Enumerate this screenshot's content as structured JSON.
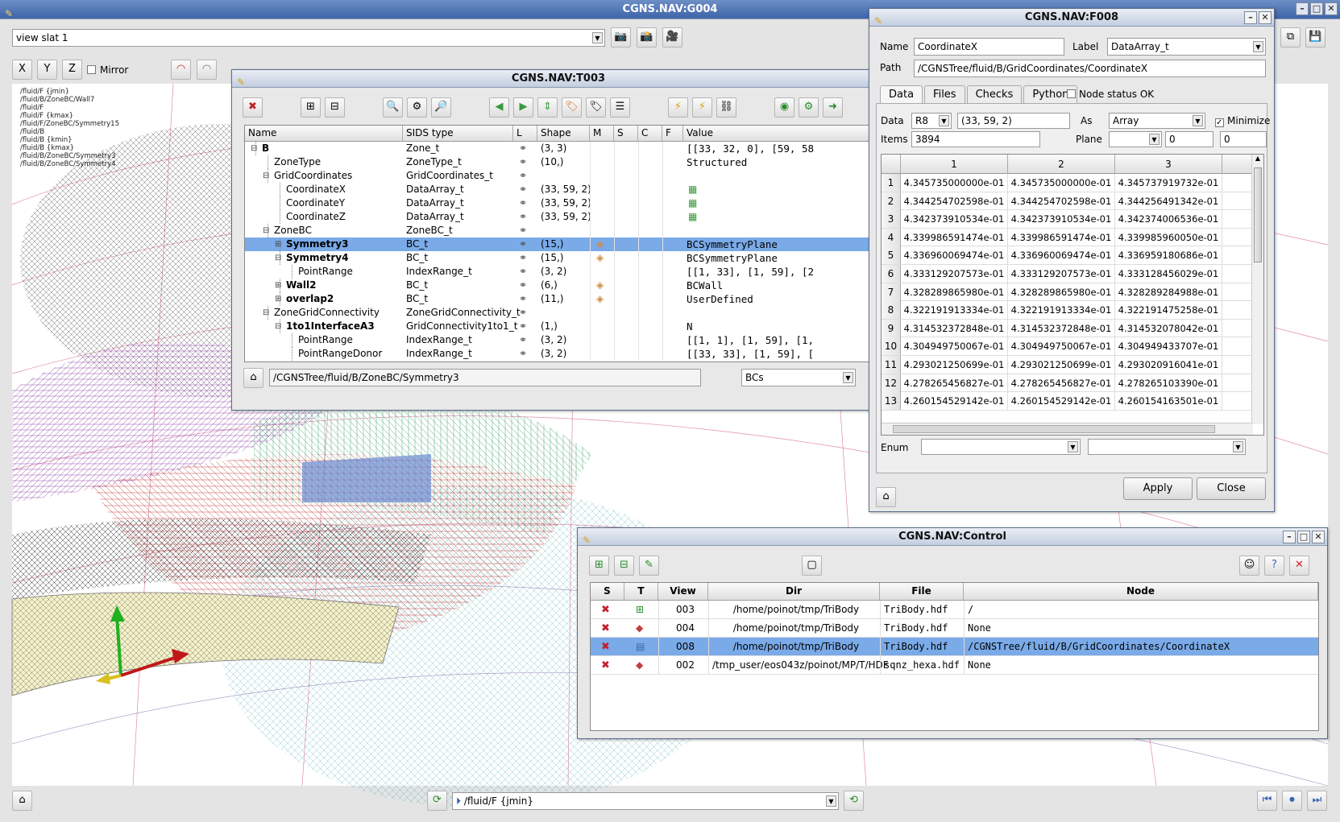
{
  "main": {
    "title": "CGNS.NAV:G004",
    "view_combo": "view slat 1",
    "axis": [
      "X",
      "Y",
      "Z"
    ],
    "mirror_label": "Mirror",
    "overlay_lines": [
      "/fluid/F {jmin}",
      "/fluid/B/ZoneBC/Wall7",
      "/fluid/F",
      "/fluid/F {kmax}",
      "/fluid/F/ZoneBC/Symmetry15",
      "/fluid/B",
      "/fluid/B {kmin}",
      "/fluid/B {kmax}",
      "/fluid/B/ZoneBC/Symmetry3",
      "/fluid/B/ZoneBC/Symmetry4"
    ],
    "bottom_combo": "/fluid/F {jmin}"
  },
  "tree": {
    "title": "CGNS.NAV:T003",
    "headers": [
      "Name",
      "SIDS type",
      "L",
      "Shape",
      "M",
      "S",
      "C",
      "F",
      "Value"
    ],
    "rows": [
      {
        "name": "B",
        "indent": 1,
        "bold": true,
        "toggle": "-",
        "sids": "Zone_t",
        "shape": "(3, 3)",
        "value": "[[33, 32, 0], [59, 58",
        "vicon": "",
        "m": ""
      },
      {
        "name": "ZoneType",
        "indent": 2,
        "bold": false,
        "toggle": "",
        "sids": "ZoneType_t",
        "shape": "(10,)",
        "value": "Structured",
        "vicon": "",
        "m": ""
      },
      {
        "name": "GridCoordinates",
        "indent": 2,
        "bold": false,
        "toggle": "-",
        "sids": "GridCoordinates_t",
        "shape": "",
        "value": "",
        "vicon": "",
        "m": ""
      },
      {
        "name": "CoordinateX",
        "indent": 3,
        "bold": false,
        "toggle": "",
        "sids": "DataArray_t",
        "shape": "(33, 59, 2)",
        "value": "",
        "vicon": "grid",
        "m": ""
      },
      {
        "name": "CoordinateY",
        "indent": 3,
        "bold": false,
        "toggle": "",
        "sids": "DataArray_t",
        "shape": "(33, 59, 2)",
        "value": "",
        "vicon": "grid",
        "m": ""
      },
      {
        "name": "CoordinateZ",
        "indent": 3,
        "bold": false,
        "toggle": "",
        "sids": "DataArray_t",
        "shape": "(33, 59, 2)",
        "value": "",
        "vicon": "grid",
        "m": ""
      },
      {
        "name": "ZoneBC",
        "indent": 2,
        "bold": false,
        "toggle": "-",
        "sids": "ZoneBC_t",
        "shape": "",
        "value": "",
        "vicon": "",
        "m": ""
      },
      {
        "name": "Symmetry3",
        "indent": 3,
        "bold": true,
        "toggle": "+",
        "sids": "BC_t",
        "shape": "(15,)",
        "value": "BCSymmetryPlane",
        "vicon": "",
        "m": "tag",
        "selected": true
      },
      {
        "name": "Symmetry4",
        "indent": 3,
        "bold": true,
        "toggle": "-",
        "sids": "BC_t",
        "shape": "(15,)",
        "value": "BCSymmetryPlane",
        "vicon": "",
        "m": "tag"
      },
      {
        "name": "PointRange",
        "indent": 4,
        "bold": false,
        "toggle": "",
        "sids": "IndexRange_t",
        "shape": "(3, 2)",
        "value": "[[1, 33], [1, 59], [2",
        "vicon": "",
        "m": ""
      },
      {
        "name": "Wall2",
        "indent": 3,
        "bold": true,
        "toggle": "+",
        "sids": "BC_t",
        "shape": "(6,)",
        "value": "BCWall",
        "vicon": "",
        "m": "tag"
      },
      {
        "name": "overlap2",
        "indent": 3,
        "bold": true,
        "toggle": "+",
        "sids": "BC_t",
        "shape": "(11,)",
        "value": "UserDefined",
        "vicon": "",
        "m": "tag"
      },
      {
        "name": "ZoneGridConnectivity",
        "indent": 2,
        "bold": false,
        "toggle": "-",
        "sids": "ZoneGridConnectivity_t",
        "shape": "",
        "value": "",
        "vicon": "",
        "m": ""
      },
      {
        "name": "1to1InterfaceA3",
        "indent": 3,
        "bold": true,
        "toggle": "-",
        "sids": "GridConnectivity1to1_t",
        "shape": "(1,)",
        "value": "N",
        "vicon": "",
        "m": ""
      },
      {
        "name": "PointRange",
        "indent": 4,
        "bold": false,
        "toggle": "",
        "sids": "IndexRange_t",
        "shape": "(3, 2)",
        "value": "[[1, 1], [1, 59], [1,",
        "vicon": "",
        "m": ""
      },
      {
        "name": "PointRangeDonor",
        "indent": 4,
        "bold": false,
        "toggle": "",
        "sids": "IndexRange_t",
        "shape": "(3, 2)",
        "value": "[[33, 33], [1, 59], [",
        "vicon": "",
        "m": ""
      }
    ],
    "path": "/CGNSTree/fluid/B/ZoneBC/Symmetry3",
    "filter": "BCs"
  },
  "form": {
    "title": "CGNS.NAV:F008",
    "name_label": "Name",
    "name_value": "CoordinateX",
    "label_label": "Label",
    "label_value": "DataArray_t",
    "path_label": "Path",
    "path_value": "/CGNSTree/fluid/B/GridCoordinates/CoordinateX",
    "tabs": [
      "Data",
      "Files",
      "Checks",
      "Python"
    ],
    "node_status": "Node status OK",
    "data_label": "Data",
    "data_type": "R8",
    "data_shape": "(33, 59, 2)",
    "as_label": "As",
    "as_value": "Array",
    "minimize_label": "Minimize",
    "items_label": "Items",
    "items_value": "3894",
    "plane_label": "Plane",
    "plane_a": "0",
    "plane_b": "0",
    "col_headers": [
      "1",
      "2",
      "3"
    ],
    "rows": [
      [
        "1",
        "4.345735000000e-01",
        "4.345735000000e-01",
        "4.345737919732e-01"
      ],
      [
        "2",
        "4.344254702598e-01",
        "4.344254702598e-01",
        "4.344256491342e-01"
      ],
      [
        "3",
        "4.342373910534e-01",
        "4.342373910534e-01",
        "4.342374006536e-01"
      ],
      [
        "4",
        "4.339986591474e-01",
        "4.339986591474e-01",
        "4.339985960050e-01"
      ],
      [
        "5",
        "4.336960069474e-01",
        "4.336960069474e-01",
        "4.336959180686e-01"
      ],
      [
        "6",
        "4.333129207573e-01",
        "4.333129207573e-01",
        "4.333128456029e-01"
      ],
      [
        "7",
        "4.328289865980e-01",
        "4.328289865980e-01",
        "4.328289284988e-01"
      ],
      [
        "8",
        "4.322191913334e-01",
        "4.322191913334e-01",
        "4.322191475258e-01"
      ],
      [
        "9",
        "4.314532372848e-01",
        "4.314532372848e-01",
        "4.314532078042e-01"
      ],
      [
        "10",
        "4.304949750067e-01",
        "4.304949750067e-01",
        "4.304949433707e-01"
      ],
      [
        "11",
        "4.293021250699e-01",
        "4.293021250699e-01",
        "4.293020916041e-01"
      ],
      [
        "12",
        "4.278265456827e-01",
        "4.278265456827e-01",
        "4.278265103390e-01"
      ],
      [
        "13",
        "4.260154529142e-01",
        "4.260154529142e-01",
        "4.260154163501e-01"
      ]
    ],
    "enum_label": "Enum",
    "apply_label": "Apply",
    "close_label": "Close"
  },
  "control": {
    "title": "CGNS.NAV:Control",
    "headers": [
      "S",
      "T",
      "View",
      "Dir",
      "File",
      "Node"
    ],
    "rows": [
      {
        "view": "003",
        "dir": "/home/poinot/tmp/TriBody",
        "file": "TriBody.hdf",
        "node": "/",
        "ticon": "tree"
      },
      {
        "view": "004",
        "dir": "/home/poinot/tmp/TriBody",
        "file": "TriBody.hdf",
        "node": "None",
        "ticon": "3d"
      },
      {
        "view": "008",
        "dir": "/home/poinot/tmp/TriBody",
        "file": "TriBody.hdf",
        "node": "/CGNSTree/fluid/B/GridCoordinates/CoordinateX",
        "ticon": "form",
        "selected": true
      },
      {
        "view": "002",
        "dir": "/tmp_user/eos043z/poinot/MP/T/HDF",
        "file": "sqnz_hexa.hdf",
        "node": "None",
        "ticon": "3d"
      }
    ]
  },
  "colors": {
    "selection": "#7aaae8",
    "titlebar": "#3e64a8"
  }
}
